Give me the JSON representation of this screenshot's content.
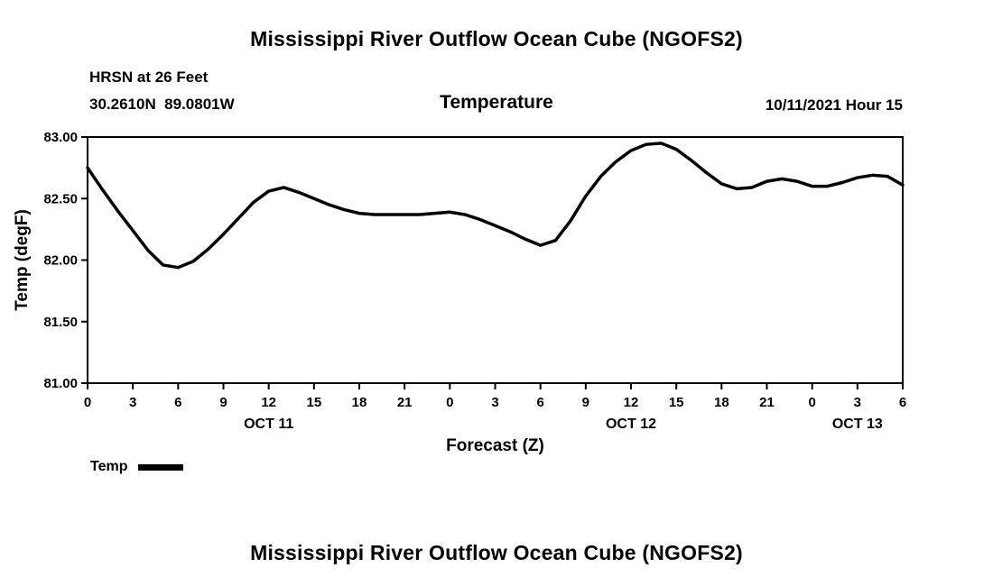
{
  "header": {
    "title": "Mississippi River Outflow Ocean Cube (NGOFS2)",
    "station": "HRSN at 26 Feet",
    "coordinates": "30.2610N  89.0801W",
    "variable": "Temperature",
    "run_time": "10/11/2021 Hour 15"
  },
  "legend": {
    "label": "Temp",
    "line_color": "#000000"
  },
  "footer": {
    "title": "Mississippi River Outflow Ocean Cube (NGOFS2)"
  },
  "chart_data": {
    "type": "line",
    "title": "Temperature",
    "xlabel": "Forecast (Z)",
    "ylabel": "Temp (degF)",
    "xlim": [
      0,
      54
    ],
    "ylim": [
      81.0,
      83.0
    ],
    "grid": false,
    "legend_position": "bottom-left",
    "x_step": 1,
    "x_ticks": [
      0,
      3,
      6,
      9,
      12,
      15,
      18,
      21,
      24,
      27,
      30,
      33,
      36,
      39,
      42,
      45,
      48,
      51,
      54
    ],
    "x_tick_labels": [
      "0",
      "3",
      "6",
      "9",
      "12",
      "15",
      "18",
      "21",
      "0",
      "3",
      "6",
      "9",
      "12",
      "15",
      "18",
      "21",
      "0",
      "3",
      "6"
    ],
    "y_ticks": [
      81.0,
      81.5,
      82.0,
      82.5,
      83.0
    ],
    "y_tick_labels": [
      "81.00",
      "81.50",
      "82.00",
      "82.50",
      "83.00"
    ],
    "day_labels": [
      {
        "x": 12,
        "label": "OCT 11"
      },
      {
        "x": 36,
        "label": "OCT 12"
      },
      {
        "x": 51,
        "label": "OCT 13"
      }
    ],
    "series": [
      {
        "name": "Temp",
        "color": "#000000",
        "values": [
          82.75,
          82.57,
          82.4,
          82.24,
          82.08,
          81.96,
          81.94,
          81.99,
          82.09,
          82.21,
          82.34,
          82.47,
          82.56,
          82.59,
          82.55,
          82.5,
          82.45,
          82.41,
          82.38,
          82.37,
          82.37,
          82.37,
          82.37,
          82.38,
          82.39,
          82.37,
          82.33,
          82.28,
          82.23,
          82.17,
          82.12,
          82.16,
          82.32,
          82.52,
          82.68,
          82.8,
          82.89,
          82.94,
          82.95,
          82.9,
          82.81,
          82.71,
          82.62,
          82.58,
          82.59,
          82.64,
          82.66,
          82.64,
          82.6,
          82.6,
          82.63,
          82.67,
          82.69,
          82.68,
          82.61
        ]
      }
    ]
  }
}
